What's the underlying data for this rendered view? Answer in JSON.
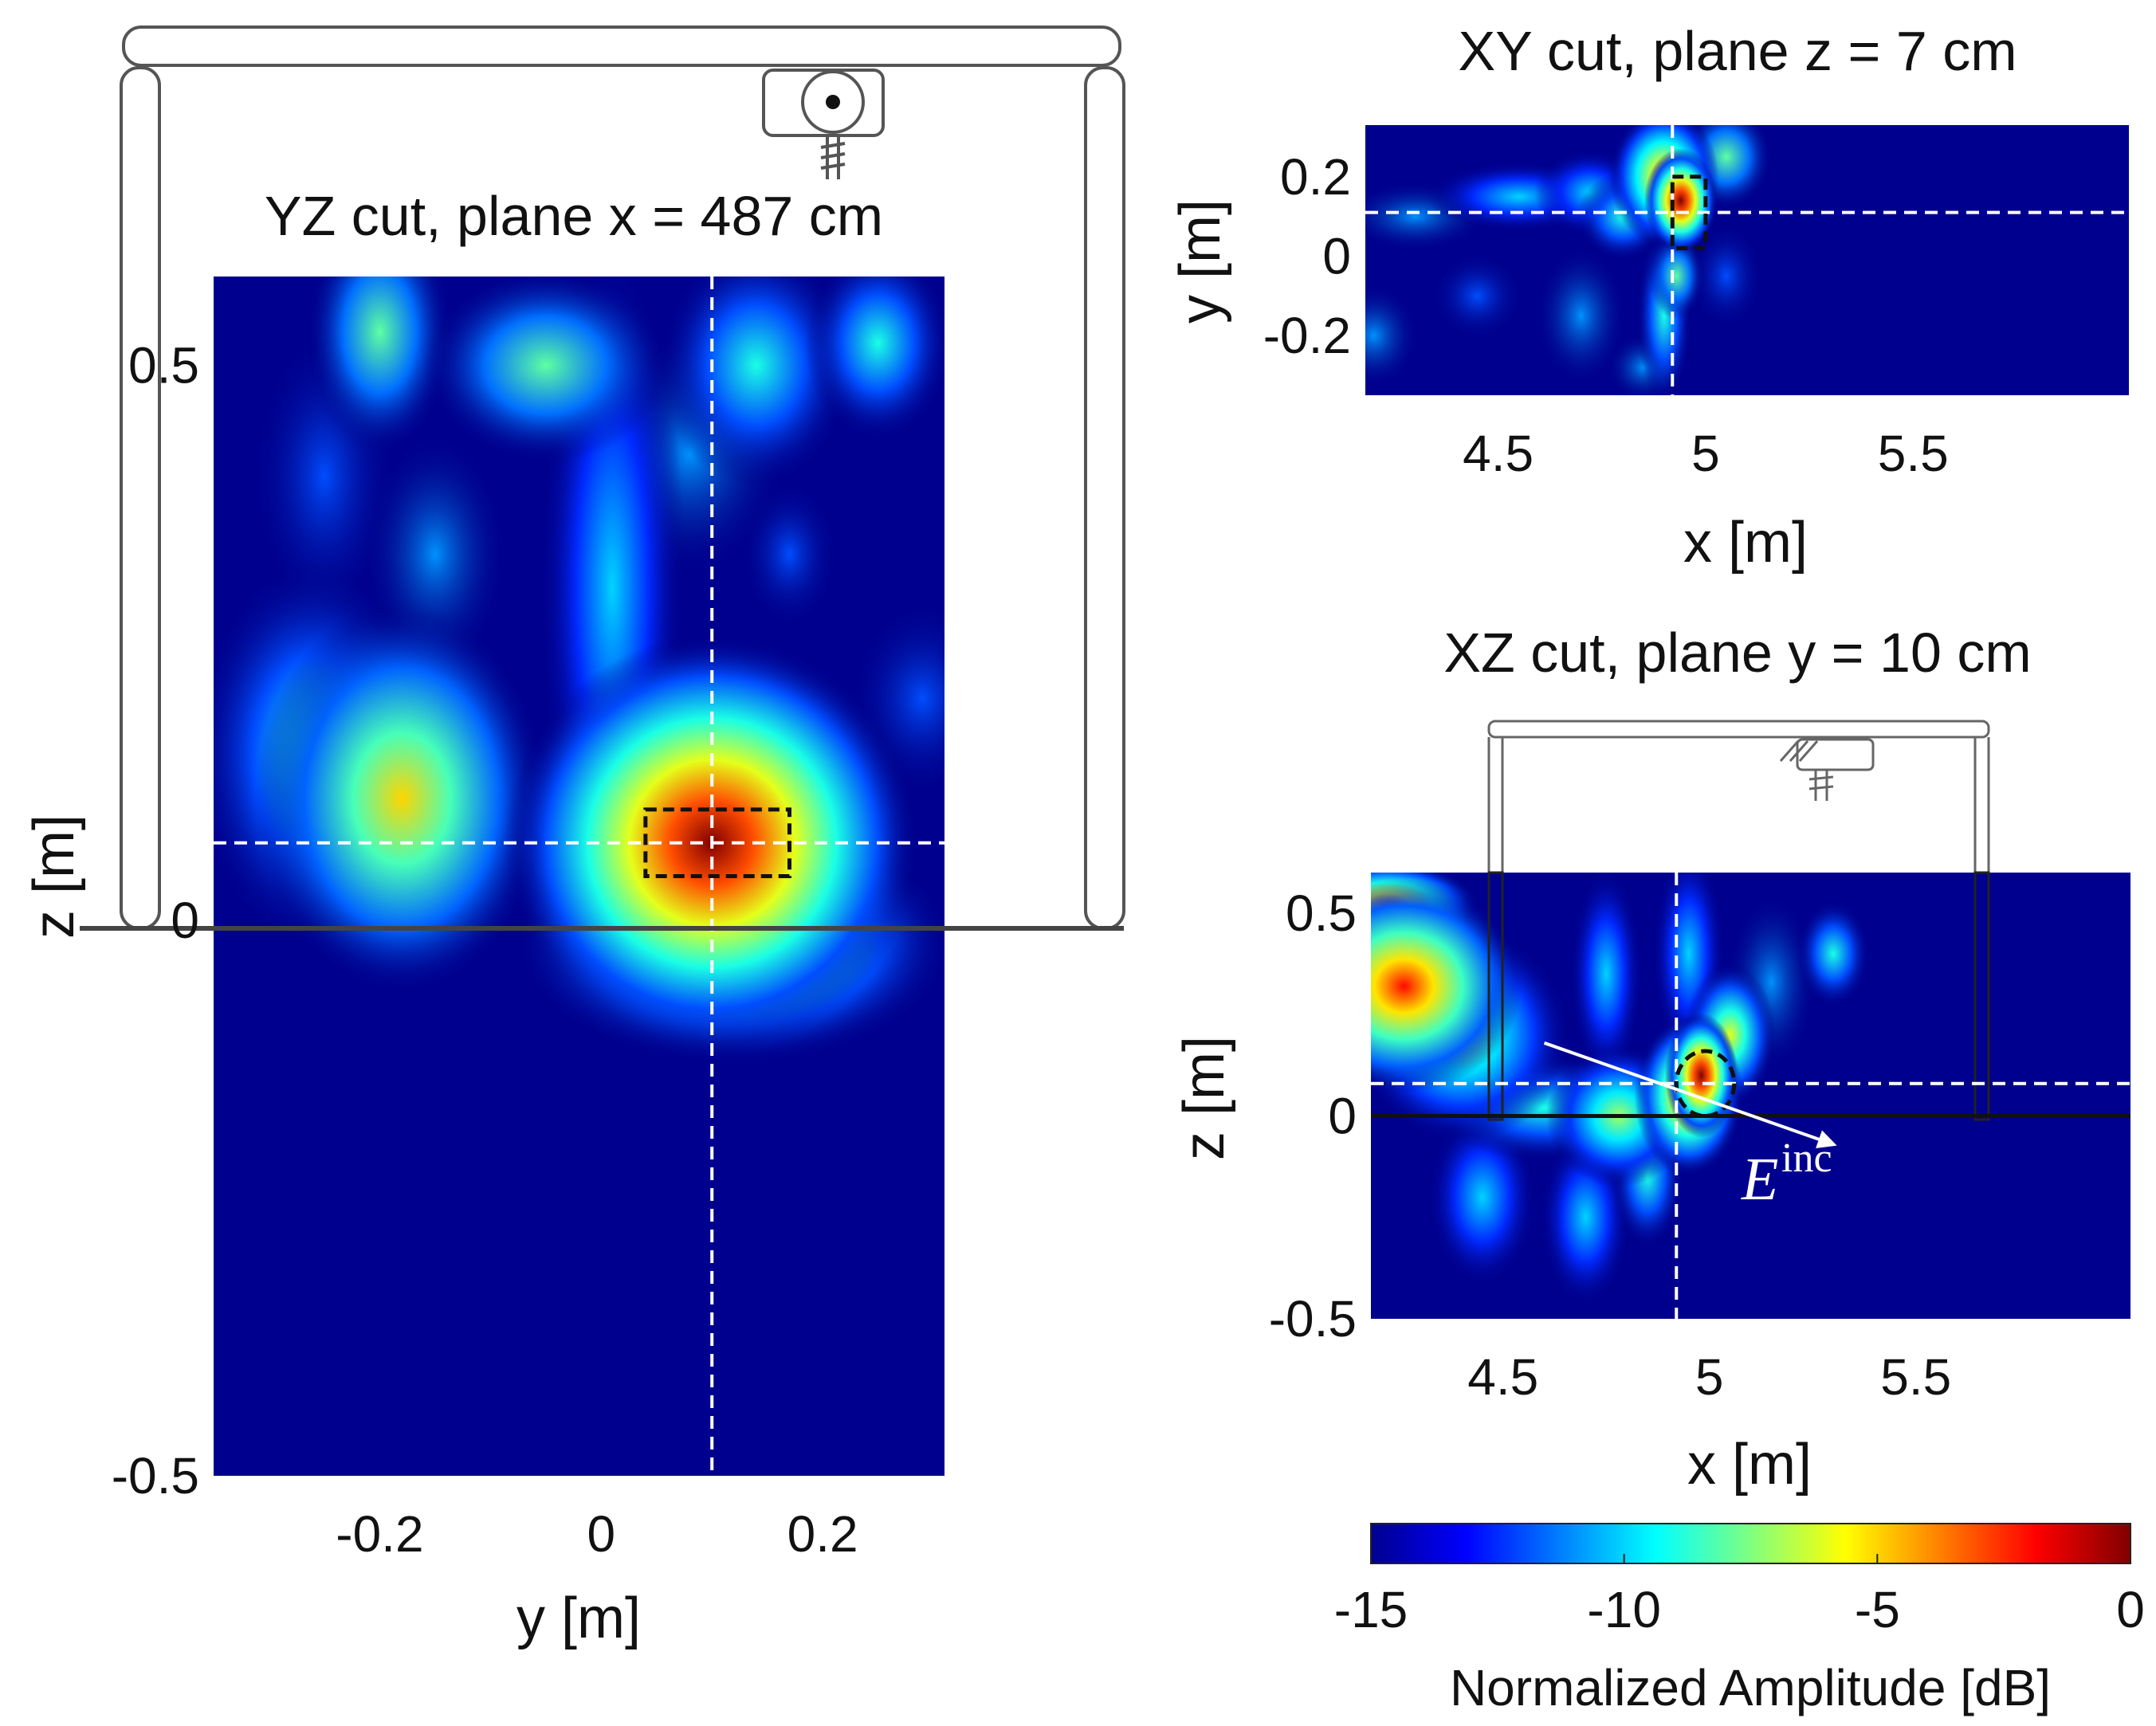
{
  "chart_data": [
    {
      "id": "yz",
      "type": "heatmap",
      "title": "YZ cut, plane x = 487 cm",
      "xlabel": "y [m]",
      "ylabel": "z [m]",
      "xlim": [
        -0.35,
        0.31
      ],
      "ylim": [
        -0.5,
        0.58
      ],
      "xticks": [
        -0.2,
        0,
        0.2
      ],
      "xtick_labels": [
        "-0.2",
        "0",
        "0.2"
      ],
      "yticks": [
        -0.5,
        0,
        0.5
      ],
      "ytick_labels": [
        "-0.5",
        "0",
        "0.5"
      ],
      "crosshair": {
        "x": 0.1,
        "y": 0.07
      },
      "target_box": {
        "x0": 0.04,
        "x1": 0.17,
        "y0": 0.04,
        "y1": 0.1
      },
      "ground_level": 0,
      "hotspots": [
        {
          "x": 0.1,
          "y": 0.07,
          "value": 0,
          "sx": 0.085,
          "sy": 0.085
        },
        {
          "x": 0.12,
          "y": -0.02,
          "value": -6,
          "sx": 0.09,
          "sy": 0.05
        },
        {
          "x": -0.18,
          "y": 0.11,
          "value": -5,
          "sx": 0.06,
          "sy": 0.08
        },
        {
          "x": -0.26,
          "y": 0.15,
          "value": -9,
          "sx": 0.05,
          "sy": 0.08
        },
        {
          "x": -0.2,
          "y": 0.53,
          "value": -8,
          "sx": 0.03,
          "sy": 0.05
        },
        {
          "x": 0.01,
          "y": 0.3,
          "value": -10,
          "sx": 0.03,
          "sy": 0.14
        },
        {
          "x": -0.05,
          "y": 0.5,
          "value": -8,
          "sx": 0.05,
          "sy": 0.04
        },
        {
          "x": 0.14,
          "y": 0.5,
          "value": -9,
          "sx": 0.04,
          "sy": 0.05
        },
        {
          "x": 0.25,
          "y": 0.52,
          "value": -9,
          "sx": 0.03,
          "sy": 0.04
        },
        {
          "x": -0.25,
          "y": 0.4,
          "value": -12,
          "sx": 0.03,
          "sy": 0.06
        },
        {
          "x": -0.15,
          "y": 0.33,
          "value": -11,
          "sx": 0.03,
          "sy": 0.05
        },
        {
          "x": 0.17,
          "y": 0.33,
          "value": -12,
          "sx": 0.02,
          "sy": 0.03
        },
        {
          "x": 0.08,
          "y": 0.42,
          "value": -11,
          "sx": 0.04,
          "sy": 0.05
        },
        {
          "x": 0.29,
          "y": 0.2,
          "value": -12,
          "sx": 0.03,
          "sy": 0.04
        }
      ]
    },
    {
      "id": "xy",
      "type": "heatmap",
      "title": "XY cut, plane z = 7 cm",
      "xlabel": "x [m]",
      "ylabel": "y [m]",
      "xlim": [
        4.18,
        6.02
      ],
      "ylim": [
        -0.35,
        0.33
      ],
      "xticks": [
        4.5,
        5,
        5.5
      ],
      "xtick_labels": [
        "4.5",
        "5",
        "5.5"
      ],
      "yticks": [
        0.2,
        0,
        -0.2
      ],
      "ytick_labels": [
        "0.2",
        "0",
        "-0.2"
      ],
      "crosshair": {
        "x": 4.92,
        "y": 0.11
      },
      "target_box": {
        "x0": 4.92,
        "x1": 5.0,
        "y0": 0.02,
        "y1": 0.2
      },
      "hotspots": [
        {
          "x": 4.94,
          "y": 0.14,
          "value": 0,
          "sx": 0.04,
          "sy": 0.06
        },
        {
          "x": 4.9,
          "y": 0.2,
          "value": -4,
          "sx": 0.06,
          "sy": 0.08
        },
        {
          "x": 4.3,
          "y": 0.1,
          "value": -11,
          "sx": 0.08,
          "sy": 0.04
        },
        {
          "x": 4.55,
          "y": 0.15,
          "value": -10,
          "sx": 0.1,
          "sy": 0.04
        },
        {
          "x": 4.72,
          "y": 0.16,
          "value": -10,
          "sx": 0.06,
          "sy": 0.05
        },
        {
          "x": 4.8,
          "y": 0.1,
          "value": -9,
          "sx": 0.05,
          "sy": 0.05
        },
        {
          "x": 4.2,
          "y": -0.2,
          "value": -11,
          "sx": 0.05,
          "sy": 0.06
        },
        {
          "x": 4.45,
          "y": -0.1,
          "value": -12,
          "sx": 0.05,
          "sy": 0.05
        },
        {
          "x": 4.7,
          "y": -0.15,
          "value": -11,
          "sx": 0.05,
          "sy": 0.08
        },
        {
          "x": 4.9,
          "y": -0.15,
          "value": -9,
          "sx": 0.03,
          "sy": 0.1
        },
        {
          "x": 4.93,
          "y": -0.05,
          "value": -8,
          "sx": 0.03,
          "sy": 0.05
        },
        {
          "x": 5.05,
          "y": 0.25,
          "value": -8,
          "sx": 0.05,
          "sy": 0.06
        },
        {
          "x": 5.05,
          "y": -0.05,
          "value": -12,
          "sx": 0.04,
          "sy": 0.06
        },
        {
          "x": 4.85,
          "y": -0.28,
          "value": -11,
          "sx": 0.04,
          "sy": 0.04
        }
      ]
    },
    {
      "id": "xz",
      "type": "heatmap",
      "title": "XZ cut, plane y = 10 cm",
      "xlabel": "x [m]",
      "ylabel": "z [m]",
      "xlim": [
        4.18,
        6.02
      ],
      "ylim": [
        -0.5,
        0.6
      ],
      "xticks": [
        4.5,
        5,
        5.5
      ],
      "xtick_labels": [
        "4.5",
        "5",
        "5.5"
      ],
      "yticks": [
        0.5,
        0,
        -0.5
      ],
      "ytick_labels": [
        "0.5",
        "0",
        "-0.5"
      ],
      "crosshair": {
        "x": 4.92,
        "y": 0.08
      },
      "target_circle": {
        "x": 4.99,
        "y": 0.08,
        "rx": 0.07,
        "ry": 0.08
      },
      "ground_level": 0,
      "incident_field": {
        "label": "E",
        "superscript": "inc",
        "from": {
          "x": 4.6,
          "y": 0.18
        },
        "to": {
          "x": 5.3,
          "y": -0.07
        }
      },
      "hotspots": [
        {
          "x": 4.98,
          "y": 0.1,
          "value": 0,
          "sx": 0.04,
          "sy": 0.07
        },
        {
          "x": 4.95,
          "y": 0.05,
          "value": -3,
          "sx": 0.06,
          "sy": 0.09
        },
        {
          "x": 4.26,
          "y": 0.32,
          "value": -2,
          "sx": 0.13,
          "sy": 0.12
        },
        {
          "x": 4.22,
          "y": 0.52,
          "value": -3,
          "sx": 0.1,
          "sy": 0.05
        },
        {
          "x": 4.4,
          "y": 0.2,
          "value": -7,
          "sx": 0.12,
          "sy": 0.12
        },
        {
          "x": 4.6,
          "y": 0.02,
          "value": -9,
          "sx": 0.12,
          "sy": 0.06
        },
        {
          "x": 4.78,
          "y": 0.0,
          "value": -7,
          "sx": 0.08,
          "sy": 0.08
        },
        {
          "x": 4.75,
          "y": 0.35,
          "value": -10,
          "sx": 0.04,
          "sy": 0.12
        },
        {
          "x": 4.95,
          "y": 0.4,
          "value": -10,
          "sx": 0.04,
          "sy": 0.12
        },
        {
          "x": 5.15,
          "y": 0.33,
          "value": -11,
          "sx": 0.05,
          "sy": 0.1
        },
        {
          "x": 5.3,
          "y": 0.4,
          "value": -9,
          "sx": 0.04,
          "sy": 0.06
        },
        {
          "x": 4.45,
          "y": -0.2,
          "value": -10,
          "sx": 0.06,
          "sy": 0.1
        },
        {
          "x": 4.7,
          "y": -0.25,
          "value": -10,
          "sx": 0.05,
          "sy": 0.1
        },
        {
          "x": 4.85,
          "y": -0.15,
          "value": -9,
          "sx": 0.04,
          "sy": 0.08
        },
        {
          "x": 5.05,
          "y": 0.2,
          "value": -6,
          "sx": 0.05,
          "sy": 0.08
        }
      ]
    },
    {
      "id": "colorbar",
      "type": "colorbar",
      "label": "Normalized Amplitude [dB]",
      "range": [
        -15,
        0
      ],
      "ticks": [
        -15,
        -10,
        -5,
        0
      ],
      "tick_labels": [
        "-15",
        "-10",
        "-5",
        "0"
      ],
      "colormap": "jet"
    }
  ]
}
